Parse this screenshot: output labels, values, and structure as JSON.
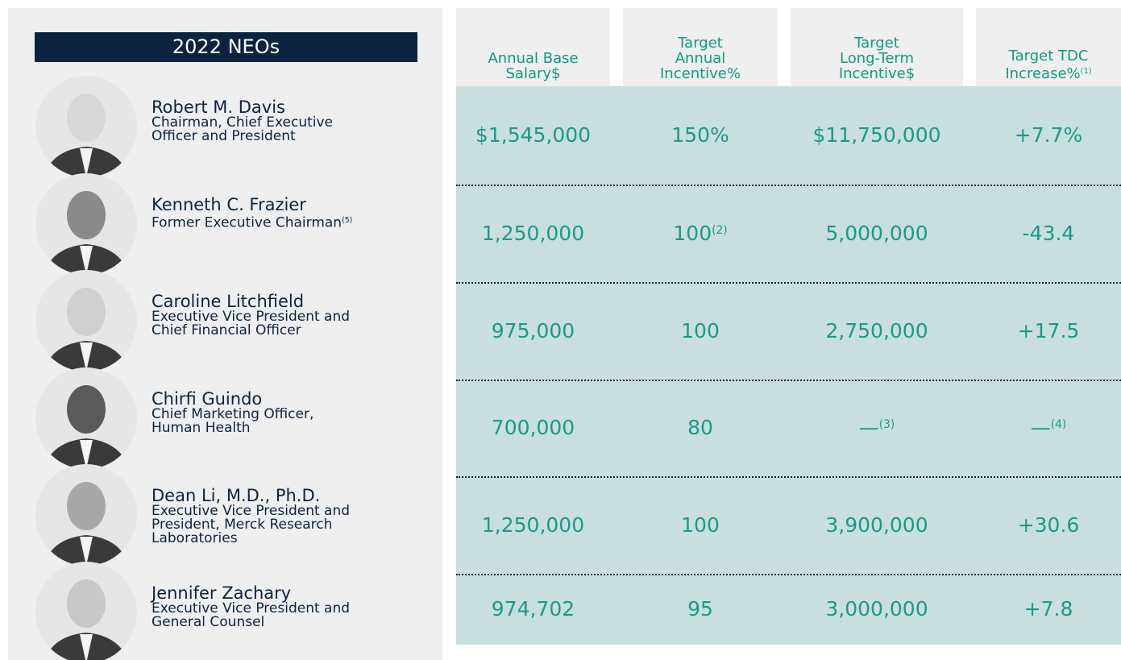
{
  "header": {
    "title": "2022 NEOs"
  },
  "columns": [
    {
      "lines": [
        "Annual Base",
        "Salary"
      ],
      "unit": "$"
    },
    {
      "lines": [
        "Target",
        "Annual",
        "Incentive"
      ],
      "unit": "%"
    },
    {
      "lines": [
        "Target",
        "Long-Term",
        "Incentive"
      ],
      "unit": "$"
    },
    {
      "lines": [
        "Target TDC",
        "Increase"
      ],
      "unit": "%",
      "note": "(1)"
    }
  ],
  "rows": [
    {
      "name": "Robert M. Davis",
      "title": [
        "Chairman, Chief Executive",
        "Officer and President"
      ],
      "cells": [
        {
          "text": "$1,545,000"
        },
        {
          "text": "150%"
        },
        {
          "text": "$11,750,000"
        },
        {
          "text": "+7.7%"
        }
      ]
    },
    {
      "name": "Kenneth C. Frazier",
      "title": [
        "Former Executive Chairman"
      ],
      "title_note": "(5)",
      "cells": [
        {
          "text": "1,250,000"
        },
        {
          "text": "100",
          "note": "(2)"
        },
        {
          "text": "5,000,000"
        },
        {
          "text": "-43.4"
        }
      ]
    },
    {
      "name": "Caroline Litchfield",
      "title": [
        "Executive Vice President and",
        "Chief Financial Officer"
      ],
      "cells": [
        {
          "text": "975,000"
        },
        {
          "text": "100"
        },
        {
          "text": "2,750,000"
        },
        {
          "text": "+17.5"
        }
      ]
    },
    {
      "name": "Chirfi Guindo",
      "title": [
        "Chief Marketing Officer,",
        "Human Health"
      ],
      "cells": [
        {
          "text": "700,000"
        },
        {
          "text": "80"
        },
        {
          "text": "—",
          "note": "(3)"
        },
        {
          "text": "—",
          "note": "(4)"
        }
      ]
    },
    {
      "name": "Dean Li, M.D., Ph.D.",
      "title": [
        "Executive Vice President and",
        "President, Merck Research",
        "Laboratories"
      ],
      "cells": [
        {
          "text": "1,250,000"
        },
        {
          "text": "100"
        },
        {
          "text": "3,900,000"
        },
        {
          "text": "+30.6"
        }
      ]
    },
    {
      "name": "Jennifer Zachary",
      "title": [
        "Executive Vice President and",
        "General Counsel"
      ],
      "cells": [
        {
          "text": "974,702"
        },
        {
          "text": "95"
        },
        {
          "text": "3,000,000"
        },
        {
          "text": "+7.8"
        }
      ]
    }
  ]
}
